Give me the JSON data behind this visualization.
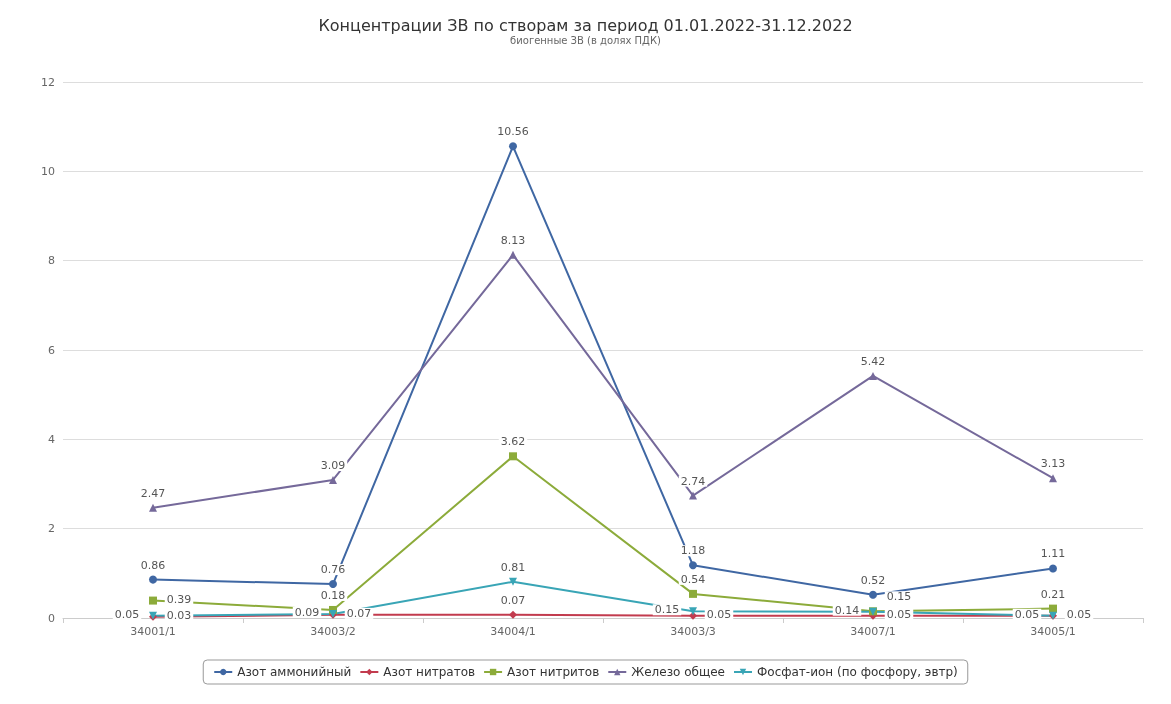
{
  "chart_data": {
    "type": "line",
    "title": "Концентрации ЗВ по створам за период 01.01.2022-31.12.2022",
    "subtitle": "биогенные ЗВ (в долях ПДК)",
    "categories": [
      "34001/1",
      "34003/2",
      "34004/1",
      "34003/3",
      "34007/1",
      "34005/1"
    ],
    "series": [
      {
        "name": "Азот аммонийный",
        "color": "#3f67a3",
        "marker": "circle",
        "values": [
          0.86,
          0.76,
          10.56,
          1.18,
          0.52,
          1.11
        ]
      },
      {
        "name": "Азот нитратов",
        "color": "#c23b4e",
        "marker": "diamond",
        "values": [
          0.03,
          0.07,
          0.07,
          0.05,
          0.05,
          0.05
        ]
      },
      {
        "name": "Азот нитритов",
        "color": "#8cab3a",
        "marker": "square",
        "values": [
          0.39,
          0.18,
          3.62,
          0.54,
          0.15,
          0.21
        ]
      },
      {
        "name": "Железо общее",
        "color": "#75699a",
        "marker": "triangle",
        "values": [
          2.47,
          3.09,
          8.13,
          2.74,
          5.42,
          3.13
        ]
      },
      {
        "name": "Фосфат-ион (по фосфору, эвтр)",
        "color": "#39a5b6",
        "marker": "triangle-down",
        "values": [
          0.05,
          0.09,
          0.81,
          0.15,
          0.14,
          0.05
        ]
      }
    ],
    "ylim": [
      0,
      12
    ],
    "yticks": [
      0,
      2,
      4,
      6,
      8,
      10,
      12
    ],
    "grid": "y",
    "legend": "bottom",
    "data_labels": true
  }
}
